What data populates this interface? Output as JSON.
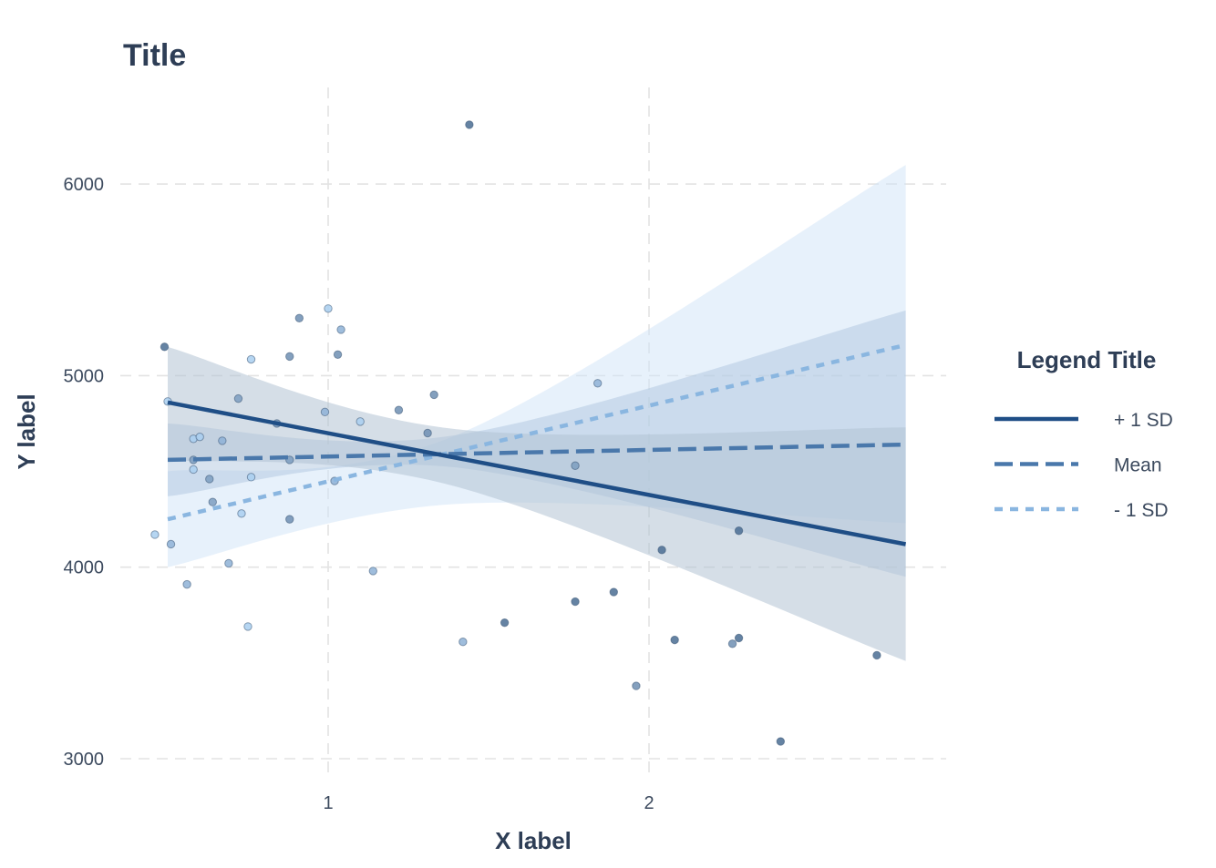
{
  "chart_data": {
    "type": "line",
    "title": "Title",
    "xlabel": "X label",
    "ylabel": "Y label",
    "xlim": [
      0.35,
      2.95
    ],
    "ylim": [
      2950,
      6500
    ],
    "x_ticks": [
      1,
      2
    ],
    "x_tick_labels": [
      "1",
      "2"
    ],
    "y_ticks": [
      3000,
      4000,
      5000,
      6000
    ],
    "y_tick_labels": [
      "3000",
      "4000",
      "5000",
      "6000"
    ],
    "grid": true,
    "legend": {
      "title": "Legend Title",
      "position": "right"
    },
    "series": [
      {
        "name": "+ 1 SD",
        "color": "#1f4e86",
        "linestyle": "solid",
        "x": [
          0.5,
          2.8
        ],
        "y": [
          4860,
          4120
        ],
        "ci_x": [
          0.5,
          1.4,
          2.8
        ],
        "ci_lower": [
          4560,
          4420,
          3510
        ],
        "ci_upper": [
          5150,
          4720,
          4730
        ]
      },
      {
        "name": "Mean",
        "color": "#4a78ab",
        "linestyle": "dashed",
        "x": [
          0.5,
          2.8
        ],
        "y": [
          4560,
          4640
        ],
        "ci_x": [
          0.5,
          1.4,
          2.8
        ],
        "ci_lower": [
          4370,
          4520,
          3950
        ],
        "ci_upper": [
          4750,
          4690,
          5340
        ]
      },
      {
        "name": "- 1 SD",
        "color": "#8ab6e0",
        "linestyle": "dotted",
        "x": [
          0.5,
          2.8
        ],
        "y": [
          4250,
          5160
        ],
        "ci_x": [
          0.5,
          1.4,
          2.8
        ],
        "ci_lower": [
          4000,
          4330,
          4230
        ],
        "ci_upper": [
          4500,
          4690,
          6100
        ]
      }
    ],
    "points": [
      {
        "x": 1.44,
        "y": 6310,
        "color": "#4a6d93"
      },
      {
        "x": 0.49,
        "y": 5150,
        "color": "#4a6d93"
      },
      {
        "x": 1.0,
        "y": 5350,
        "color": "#a9cff0"
      },
      {
        "x": 0.91,
        "y": 5300,
        "color": "#6e8fb3"
      },
      {
        "x": 1.04,
        "y": 5240,
        "color": "#8eb1d6"
      },
      {
        "x": 1.03,
        "y": 5110,
        "color": "#6e8fb3"
      },
      {
        "x": 0.88,
        "y": 5100,
        "color": "#6e8fb3"
      },
      {
        "x": 0.76,
        "y": 5085,
        "color": "#a9cff0"
      },
      {
        "x": 0.72,
        "y": 4880,
        "color": "#7d9dc0"
      },
      {
        "x": 0.5,
        "y": 4865,
        "color": "#a9cff0"
      },
      {
        "x": 1.33,
        "y": 4900,
        "color": "#6e8fb3"
      },
      {
        "x": 1.84,
        "y": 4960,
        "color": "#8eb1d6"
      },
      {
        "x": 0.99,
        "y": 4810,
        "color": "#8eb1d6"
      },
      {
        "x": 1.22,
        "y": 4820,
        "color": "#6e8fb3"
      },
      {
        "x": 0.84,
        "y": 4750,
        "color": "#6e8fb3"
      },
      {
        "x": 1.1,
        "y": 4760,
        "color": "#a9cff0"
      },
      {
        "x": 1.31,
        "y": 4700,
        "color": "#6e8fb3"
      },
      {
        "x": 0.58,
        "y": 4670,
        "color": "#a9cff0"
      },
      {
        "x": 0.6,
        "y": 4680,
        "color": "#a9cff0"
      },
      {
        "x": 0.67,
        "y": 4660,
        "color": "#8eb1d6"
      },
      {
        "x": 0.58,
        "y": 4560,
        "color": "#7d9dc0"
      },
      {
        "x": 0.88,
        "y": 4560,
        "color": "#7d9dc0"
      },
      {
        "x": 1.77,
        "y": 4530,
        "color": "#7d9dc0"
      },
      {
        "x": 0.58,
        "y": 4510,
        "color": "#a9cff0"
      },
      {
        "x": 0.63,
        "y": 4460,
        "color": "#7d9dc0"
      },
      {
        "x": 0.76,
        "y": 4470,
        "color": "#a9cff0"
      },
      {
        "x": 1.02,
        "y": 4450,
        "color": "#8eb1d6"
      },
      {
        "x": 0.64,
        "y": 4340,
        "color": "#7d9dc0"
      },
      {
        "x": 0.73,
        "y": 4280,
        "color": "#a9cff0"
      },
      {
        "x": 0.88,
        "y": 4250,
        "color": "#6e8fb3"
      },
      {
        "x": 2.28,
        "y": 4190,
        "color": "#4a6d93"
      },
      {
        "x": 0.46,
        "y": 4170,
        "color": "#a9cff0"
      },
      {
        "x": 0.51,
        "y": 4120,
        "color": "#8eb1d6"
      },
      {
        "x": 2.04,
        "y": 4090,
        "color": "#4a6d93"
      },
      {
        "x": 0.69,
        "y": 4020,
        "color": "#8eb1d6"
      },
      {
        "x": 1.14,
        "y": 3980,
        "color": "#8eb1d6"
      },
      {
        "x": 0.56,
        "y": 3910,
        "color": "#8eb1d6"
      },
      {
        "x": 1.89,
        "y": 3870,
        "color": "#4a6d93"
      },
      {
        "x": 1.77,
        "y": 3820,
        "color": "#4a6d93"
      },
      {
        "x": 1.55,
        "y": 3710,
        "color": "#4a6d93"
      },
      {
        "x": 0.75,
        "y": 3690,
        "color": "#a9cff0"
      },
      {
        "x": 2.08,
        "y": 3620,
        "color": "#4a6d93"
      },
      {
        "x": 2.28,
        "y": 3630,
        "color": "#4a6d93"
      },
      {
        "x": 2.26,
        "y": 3600,
        "color": "#6e8fb3"
      },
      {
        "x": 1.42,
        "y": 3610,
        "color": "#8eb1d6"
      },
      {
        "x": 2.71,
        "y": 3540,
        "color": "#4a6d93"
      },
      {
        "x": 1.96,
        "y": 3380,
        "color": "#6e8fb3"
      },
      {
        "x": 2.41,
        "y": 3090,
        "color": "#4a6d93"
      }
    ]
  }
}
